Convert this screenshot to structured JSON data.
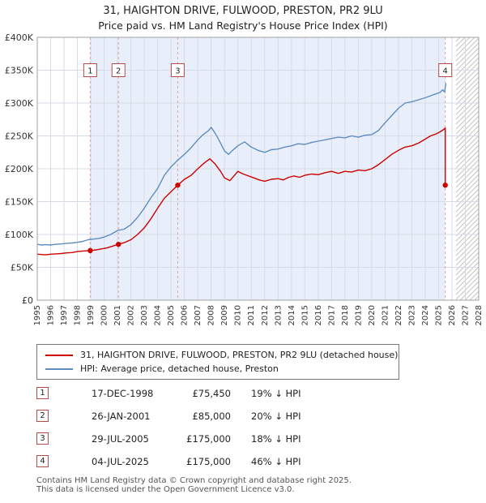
{
  "title": "31, HAIGHTON DRIVE, FULWOOD, PRESTON, PR2 9LU",
  "subtitle": "Price paid vs. HM Land Registry's House Price Index (HPI)",
  "legend": {
    "series1": "31, HAIGHTON DRIVE, FULWOOD, PRESTON, PR2 9LU (detached house)",
    "series2": "HPI: Average price, detached house, Preston"
  },
  "transactions": [
    {
      "num": "1",
      "date": "17-DEC-1998",
      "price": "£75,450",
      "hpi": "19% ↓ HPI"
    },
    {
      "num": "2",
      "date": "26-JAN-2001",
      "price": "£85,000",
      "hpi": "20% ↓ HPI"
    },
    {
      "num": "3",
      "date": "29-JUL-2005",
      "price": "£175,000",
      "hpi": "18% ↓ HPI"
    },
    {
      "num": "4",
      "date": "04-JUL-2025",
      "price": "£175,000",
      "hpi": "46% ↓ HPI"
    }
  ],
  "footer_line1": "Contains HM Land Registry data © Crown copyright and database right 2025.",
  "footer_line2": "This data is licensed under the Open Government Licence v3.0.",
  "chart_data": {
    "type": "line",
    "title": "31, HAIGHTON DRIVE, FULWOOD, PRESTON, PR2 9LU",
    "subtitle": "Price paid vs. HM Land Registry's House Price Index (HPI)",
    "xlabel": "",
    "ylabel": "",
    "y_unit": "GBP",
    "x_range": [
      1995,
      2028
    ],
    "y_range": [
      0,
      400000
    ],
    "y_tick_step": 50000,
    "y_ticks": [
      "£0",
      "£50K",
      "£100K",
      "£150K",
      "£200K",
      "£250K",
      "£300K",
      "£350K",
      "£400K"
    ],
    "x_ticks": [
      1995,
      1996,
      1997,
      1998,
      1999,
      2000,
      2001,
      2002,
      2003,
      2004,
      2005,
      2006,
      2007,
      2008,
      2009,
      2010,
      2011,
      2012,
      2013,
      2014,
      2015,
      2016,
      2017,
      2018,
      2019,
      2020,
      2021,
      2022,
      2023,
      2024,
      2025,
      2026,
      2027,
      2028
    ],
    "grid": true,
    "legend_position": "bottom",
    "shaded_region": [
      1998.96,
      2025.5
    ],
    "hatch_region": [
      2026.3,
      2028
    ],
    "flag_y": 350000,
    "colors": {
      "price_line": "#cc0000",
      "hpi_line": "#5f8dc0",
      "band": "#e9effa",
      "grid": "#d6dce6",
      "frame": "#a0a0a0",
      "marker_line": "#dfa0a8",
      "flag_border": "#b84a4a",
      "flag_text": "#222222",
      "hatch": "#c4c4c4"
    },
    "series": [
      {
        "name": "31, HAIGHTON DRIVE, FULWOOD, PRESTON, PR2 9LU (detached house)",
        "color": "#cc0000",
        "points": [
          [
            1995,
            70000
          ],
          [
            1995.3,
            69500
          ],
          [
            1995.6,
            69000
          ],
          [
            1996,
            70000
          ],
          [
            1996.4,
            70500
          ],
          [
            1996.8,
            71000
          ],
          [
            1997.2,
            72000
          ],
          [
            1997.6,
            72500
          ],
          [
            1998,
            74000
          ],
          [
            1998.5,
            75000
          ],
          [
            1998.96,
            75450
          ],
          [
            1999.4,
            76500
          ],
          [
            1999.8,
            78000
          ],
          [
            2000.2,
            79500
          ],
          [
            2000.6,
            82000
          ],
          [
            2001.07,
            85000
          ],
          [
            2001.5,
            87500
          ],
          [
            2002,
            92000
          ],
          [
            2002.5,
            100000
          ],
          [
            2003,
            110000
          ],
          [
            2003.5,
            124000
          ],
          [
            2004,
            140000
          ],
          [
            2004.5,
            155000
          ],
          [
            2005,
            165000
          ],
          [
            2005.5,
            175000
          ],
          [
            2006,
            184000
          ],
          [
            2006.5,
            190000
          ],
          [
            2007,
            200000
          ],
          [
            2007.5,
            209000
          ],
          [
            2007.9,
            215000
          ],
          [
            2008.3,
            207000
          ],
          [
            2008.7,
            196000
          ],
          [
            2009,
            186000
          ],
          [
            2009.4,
            182000
          ],
          [
            2009.7,
            189000
          ],
          [
            2010,
            196000
          ],
          [
            2010.4,
            192000
          ],
          [
            2010.8,
            189000
          ],
          [
            2011.2,
            186000
          ],
          [
            2011.6,
            183000
          ],
          [
            2012,
            181000
          ],
          [
            2012.5,
            184000
          ],
          [
            2013,
            185000
          ],
          [
            2013.4,
            183000
          ],
          [
            2013.8,
            187000
          ],
          [
            2014.2,
            189000
          ],
          [
            2014.6,
            187000
          ],
          [
            2015,
            190000
          ],
          [
            2015.5,
            192000
          ],
          [
            2016,
            191000
          ],
          [
            2016.5,
            194000
          ],
          [
            2017,
            196000
          ],
          [
            2017.5,
            193000
          ],
          [
            2018,
            196000
          ],
          [
            2018.5,
            195000
          ],
          [
            2019,
            198000
          ],
          [
            2019.5,
            197000
          ],
          [
            2020,
            200000
          ],
          [
            2020.5,
            206000
          ],
          [
            2021,
            214000
          ],
          [
            2021.5,
            222000
          ],
          [
            2022,
            228000
          ],
          [
            2022.5,
            233000
          ],
          [
            2023,
            235000
          ],
          [
            2023.5,
            239000
          ],
          [
            2024,
            245000
          ],
          [
            2024.4,
            250000
          ],
          [
            2024.8,
            253000
          ],
          [
            2025.1,
            256000
          ],
          [
            2025.4,
            260000
          ],
          [
            2025.5,
            262000
          ],
          [
            2025.5,
            175000
          ]
        ]
      },
      {
        "name": "HPI: Average price, detached house, Preston",
        "color": "#5f8dc0",
        "points": [
          [
            1995,
            85000
          ],
          [
            1995.3,
            84000
          ],
          [
            1995.6,
            84500
          ],
          [
            1996,
            84000
          ],
          [
            1996.4,
            85000
          ],
          [
            1996.8,
            85500
          ],
          [
            1997.2,
            86500
          ],
          [
            1997.6,
            87000
          ],
          [
            1998,
            88000
          ],
          [
            1998.4,
            89500
          ],
          [
            1998.8,
            92000
          ],
          [
            1999.2,
            93000
          ],
          [
            1999.6,
            94000
          ],
          [
            2000,
            96000
          ],
          [
            2000.5,
            100000
          ],
          [
            2001,
            106000
          ],
          [
            2001.5,
            108000
          ],
          [
            2002,
            115000
          ],
          [
            2002.5,
            126000
          ],
          [
            2003,
            140000
          ],
          [
            2003.5,
            156000
          ],
          [
            2004,
            170000
          ],
          [
            2004.5,
            190000
          ],
          [
            2005,
            203000
          ],
          [
            2005.5,
            213000
          ],
          [
            2006,
            222000
          ],
          [
            2006.5,
            232000
          ],
          [
            2007,
            244000
          ],
          [
            2007.4,
            252000
          ],
          [
            2007.8,
            258000
          ],
          [
            2008,
            263000
          ],
          [
            2008.3,
            254000
          ],
          [
            2008.6,
            243000
          ],
          [
            2009,
            227000
          ],
          [
            2009.3,
            222000
          ],
          [
            2009.6,
            228000
          ],
          [
            2010,
            235000
          ],
          [
            2010.5,
            241000
          ],
          [
            2011,
            233000
          ],
          [
            2011.5,
            228000
          ],
          [
            2012,
            225000
          ],
          [
            2012.5,
            229000
          ],
          [
            2013,
            230000
          ],
          [
            2013.5,
            233000
          ],
          [
            2014,
            235000
          ],
          [
            2014.5,
            238000
          ],
          [
            2015,
            237000
          ],
          [
            2015.5,
            240000
          ],
          [
            2016,
            242000
          ],
          [
            2016.5,
            244000
          ],
          [
            2017,
            246000
          ],
          [
            2017.5,
            248000
          ],
          [
            2018,
            247000
          ],
          [
            2018.5,
            250000
          ],
          [
            2019,
            248000
          ],
          [
            2019.5,
            251000
          ],
          [
            2020,
            252000
          ],
          [
            2020.5,
            258000
          ],
          [
            2021,
            270000
          ],
          [
            2021.5,
            281000
          ],
          [
            2022,
            292000
          ],
          [
            2022.5,
            300000
          ],
          [
            2023,
            302000
          ],
          [
            2023.5,
            305000
          ],
          [
            2024,
            308000
          ],
          [
            2024.4,
            311000
          ],
          [
            2024.8,
            314000
          ],
          [
            2025.1,
            316000
          ],
          [
            2025.3,
            320000
          ],
          [
            2025.45,
            317000
          ],
          [
            2025.55,
            330000
          ]
        ]
      }
    ],
    "markers": [
      {
        "label": "1",
        "x": 1998.96,
        "y": 75450
      },
      {
        "label": "2",
        "x": 2001.07,
        "y": 85000
      },
      {
        "label": "3",
        "x": 2005.5,
        "y": 175000
      },
      {
        "label": "4",
        "x": 2025.5,
        "y": 175000
      }
    ]
  }
}
